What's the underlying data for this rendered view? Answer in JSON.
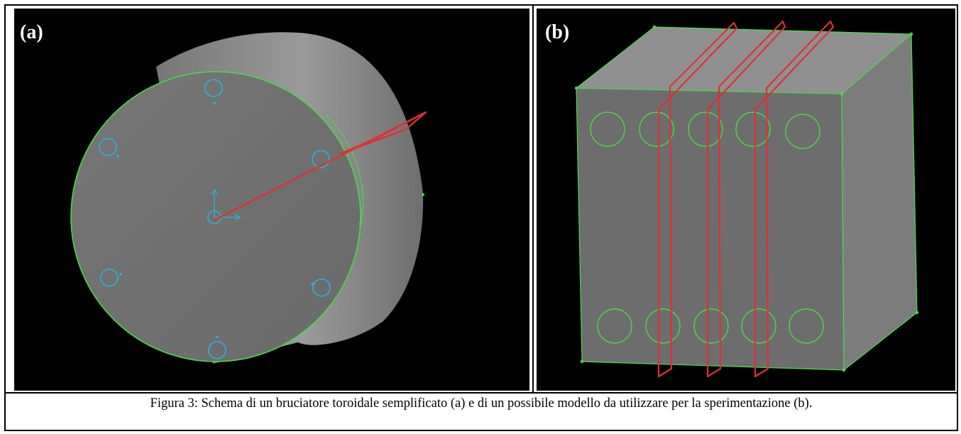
{
  "figure": {
    "panel_a_label": "(a)",
    "panel_b_label": "(b)",
    "caption": "Figura 3: Schema di un bruciatore toroidale semplificato (a) e di un possibile modello da utilizzare per la sperimentazione (b).",
    "colors": {
      "background": "#000000",
      "surface_light": "#8a8a8a",
      "surface_dark": "#6b6b6b",
      "edge_green": "#44dd44",
      "plane_red": "#e03030",
      "hole_cyan": "#22b8e0"
    },
    "icons": {
      "panel_a": "cylinder-burner-model",
      "panel_b": "block-model-with-cutting-planes"
    }
  }
}
